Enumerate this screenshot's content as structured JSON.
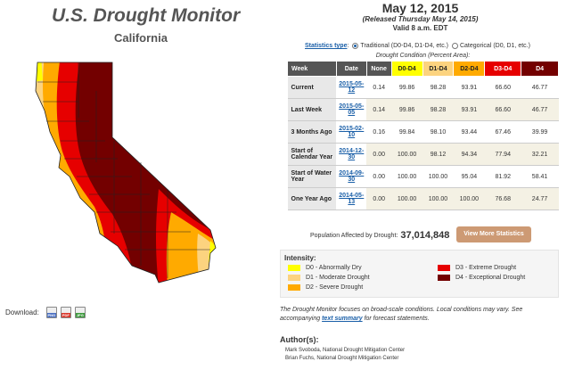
{
  "header": {
    "title": "U.S. Drought Monitor",
    "region": "California"
  },
  "download": {
    "label": "Download:",
    "formats": [
      {
        "name": "PNG",
        "color": "#4a6fc1"
      },
      {
        "name": "PDF",
        "color": "#d9362a"
      },
      {
        "name": "JPG",
        "color": "#3d9a3d"
      }
    ]
  },
  "report": {
    "date": "May 12, 2015",
    "released": "(Released Thursday May 14, 2015)",
    "valid": "Valid 8 a.m. EDT"
  },
  "statistics": {
    "label": "Statistics type",
    "colon": ":",
    "option_traditional": "Traditional (D0-D4, D1-D4, etc.)",
    "option_categorical": "Categorical (D0, D1, etc.)",
    "selected": "traditional"
  },
  "table": {
    "caption": "Drought Condition (Percent Area):",
    "headers": [
      {
        "label": "Week",
        "bg": "#555555"
      },
      {
        "label": "Date",
        "bg": "#555555"
      },
      {
        "label": "None",
        "bg": "#555555"
      },
      {
        "label": "D0-D4",
        "bg": "#ffff00"
      },
      {
        "label": "D1-D4",
        "bg": "#fcd37f"
      },
      {
        "label": "D2-D4",
        "bg": "#ffaa00"
      },
      {
        "label": "D3-D4",
        "bg": "#e60000"
      },
      {
        "label": "D4",
        "bg": "#730000"
      }
    ],
    "rows": [
      {
        "week": "Current",
        "date": "2015-05-12",
        "values": [
          "0.14",
          "99.86",
          "98.28",
          "93.91",
          "66.60",
          "46.77"
        ]
      },
      {
        "week": "Last Week",
        "date": "2015-05-05",
        "values": [
          "0.14",
          "99.86",
          "98.28",
          "93.91",
          "66.60",
          "46.77"
        ]
      },
      {
        "week": "3 Months Ago",
        "date": "2015-02-10",
        "values": [
          "0.16",
          "99.84",
          "98.10",
          "93.44",
          "67.46",
          "39.99"
        ]
      },
      {
        "week": "Start of Calendar Year",
        "date": "2014-12-30",
        "values": [
          "0.00",
          "100.00",
          "98.12",
          "94.34",
          "77.94",
          "32.21"
        ]
      },
      {
        "week": "Start of Water Year",
        "date": "2014-09-30",
        "values": [
          "0.00",
          "100.00",
          "100.00",
          "95.04",
          "81.92",
          "58.41"
        ]
      },
      {
        "week": "One Year Ago",
        "date": "2014-05-13",
        "values": [
          "0.00",
          "100.00",
          "100.00",
          "100.00",
          "76.68",
          "24.77"
        ]
      }
    ]
  },
  "population": {
    "label": "Population Affected by Drought:",
    "value": "37,014,848"
  },
  "more_button": "View More Statistics",
  "intensity": {
    "title": "Intensity:",
    "items": [
      {
        "label": "D0 - Abnormally Dry",
        "color": "#ffff00"
      },
      {
        "label": "D1 - Moderate Drought",
        "color": "#fcd37f"
      },
      {
        "label": "D2 - Severe Drought",
        "color": "#ffaa00"
      },
      {
        "label": "D3 - Extreme Drought",
        "color": "#e60000"
      },
      {
        "label": "D4 - Exceptional Drought",
        "color": "#730000"
      }
    ]
  },
  "note": {
    "text1": "The Drought Monitor focuses on broad-scale conditions. Local conditions may vary. See accompanying ",
    "link": "text summary",
    "text2": " for forecast statements."
  },
  "authors": {
    "title": "Author(s):",
    "names": [
      "Mark Svoboda, National Drought Mitigation Center",
      "Brian Fuchs, National Drought Mitigation Center"
    ]
  }
}
